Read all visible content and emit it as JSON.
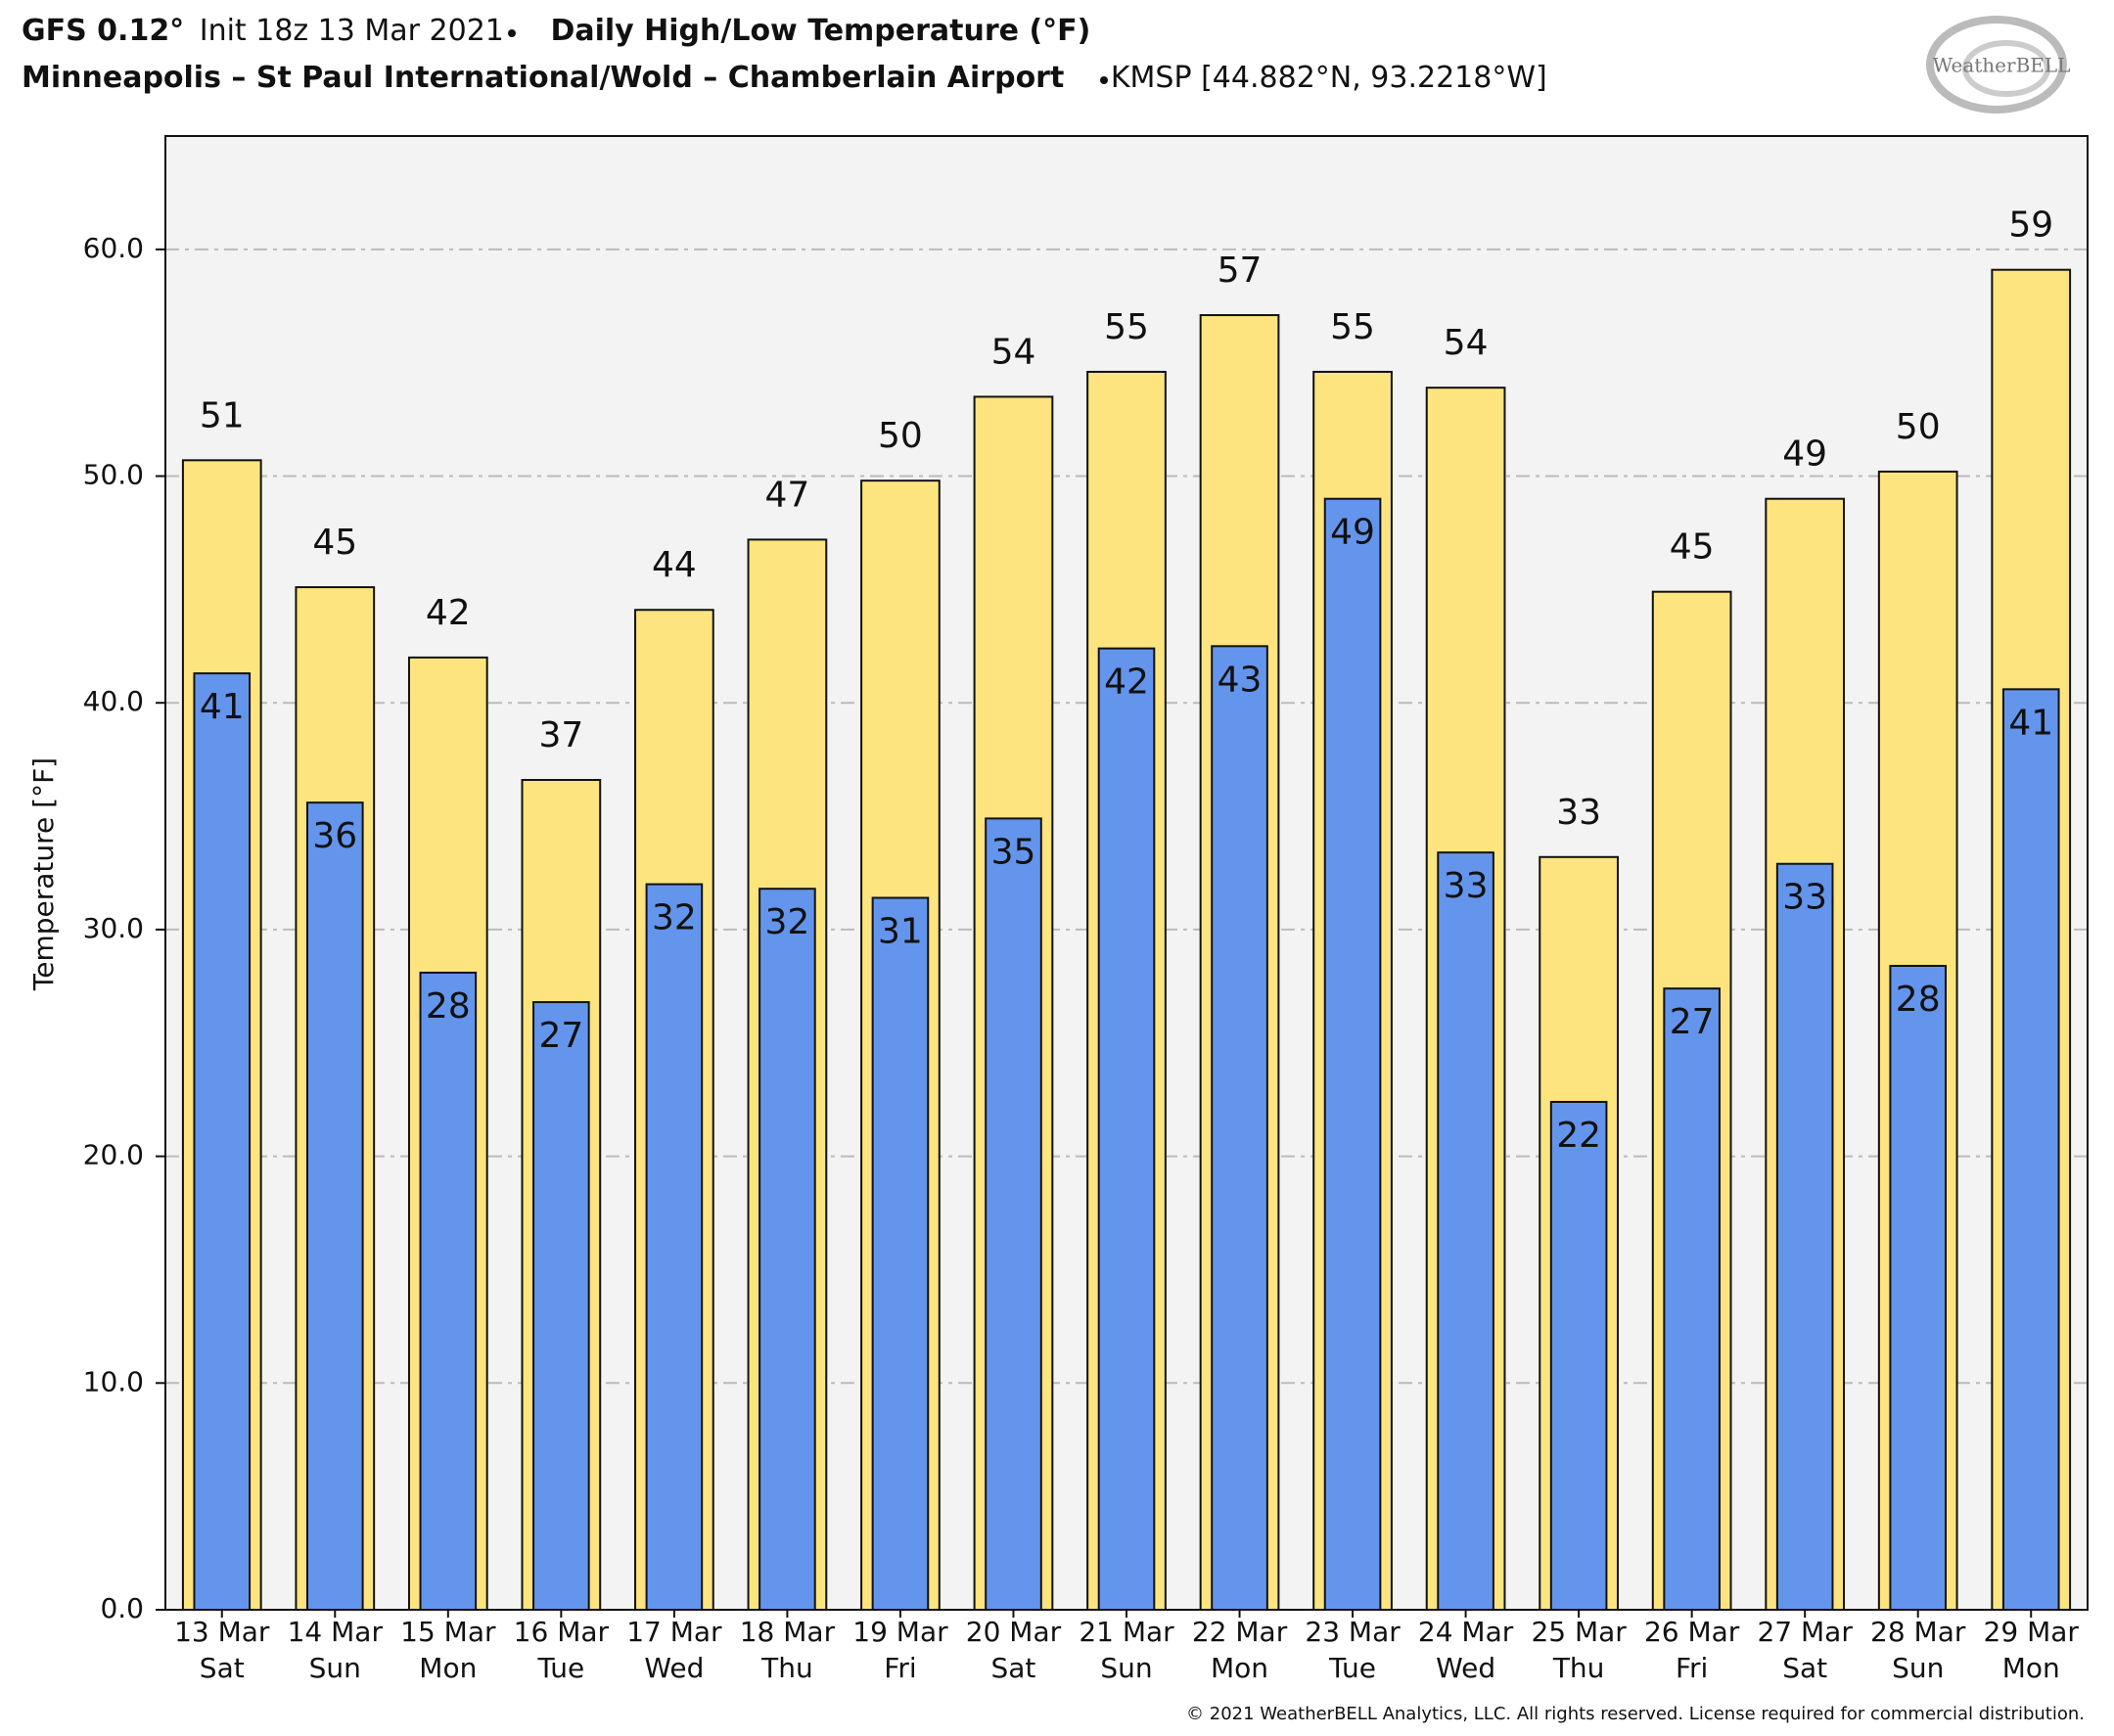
{
  "chart_data": {
    "type": "bar",
    "model": "GFS 0.12°",
    "init": "Init 18z 13 Mar 2021",
    "title": "Daily High/Low Temperature (°F)",
    "subtitle": "Minneapolis – St Paul International/Wold – Chamberlain Airport",
    "station": "KMSP [44.882°N, 93.2218°W]",
    "logo": "WeatherBELL",
    "footer": "© 2021 WeatherBELL Analytics, LLC. All rights reserved. License required for commercial distribution.",
    "ylabel": "Temperature [°F]",
    "categories": [
      "13 Mar",
      "14 Mar",
      "15 Mar",
      "16 Mar",
      "17 Mar",
      "18 Mar",
      "19 Mar",
      "20 Mar",
      "21 Mar",
      "22 Mar",
      "23 Mar",
      "24 Mar",
      "25 Mar",
      "26 Mar",
      "27 Mar",
      "28 Mar",
      "29 Mar"
    ],
    "weekdays": [
      "Sat",
      "Sun",
      "Mon",
      "Tue",
      "Wed",
      "Thu",
      "Fri",
      "Sat",
      "Sun",
      "Mon",
      "Tue",
      "Wed",
      "Thu",
      "Fri",
      "Sat",
      "Sun",
      "Mon"
    ],
    "series": [
      {
        "color": "#fde47f",
        "values": [
          50.7,
          45.1,
          42.0,
          36.6,
          44.1,
          47.2,
          49.8,
          53.5,
          54.6,
          57.1,
          54.6,
          53.9,
          33.2,
          44.9,
          49.0,
          50.2,
          59.1
        ],
        "value_labels": [
          "51",
          "45",
          "42",
          "37",
          "44",
          "47",
          "50",
          "54",
          "55",
          "57",
          "55",
          "54",
          "33",
          "45",
          "49",
          "50",
          "59"
        ]
      },
      {
        "color": "#6495ed",
        "values": [
          41.3,
          35.6,
          28.1,
          26.8,
          32.0,
          31.8,
          31.4,
          34.9,
          42.4,
          42.5,
          49.0,
          33.4,
          22.4,
          27.4,
          32.9,
          28.4,
          40.6
        ],
        "value_labels": [
          "41",
          "36",
          "28",
          "27",
          "32",
          "32",
          "31",
          "35",
          "42",
          "43",
          "49",
          "33",
          "22",
          "27",
          "33",
          "28",
          "41"
        ]
      }
    ],
    "ylim": [
      0,
      65
    ],
    "yticks": [
      {
        "value": 0,
        "label": "0.0"
      },
      {
        "value": 10,
        "label": "10.0"
      },
      {
        "value": 20,
        "label": "20.0"
      },
      {
        "value": 30,
        "label": "30.0"
      },
      {
        "value": 40,
        "label": "40.0"
      },
      {
        "value": 50,
        "label": "50.0"
      },
      {
        "value": 60,
        "label": "60.0"
      }
    ],
    "grid": true,
    "background": "#f3f3f3"
  }
}
